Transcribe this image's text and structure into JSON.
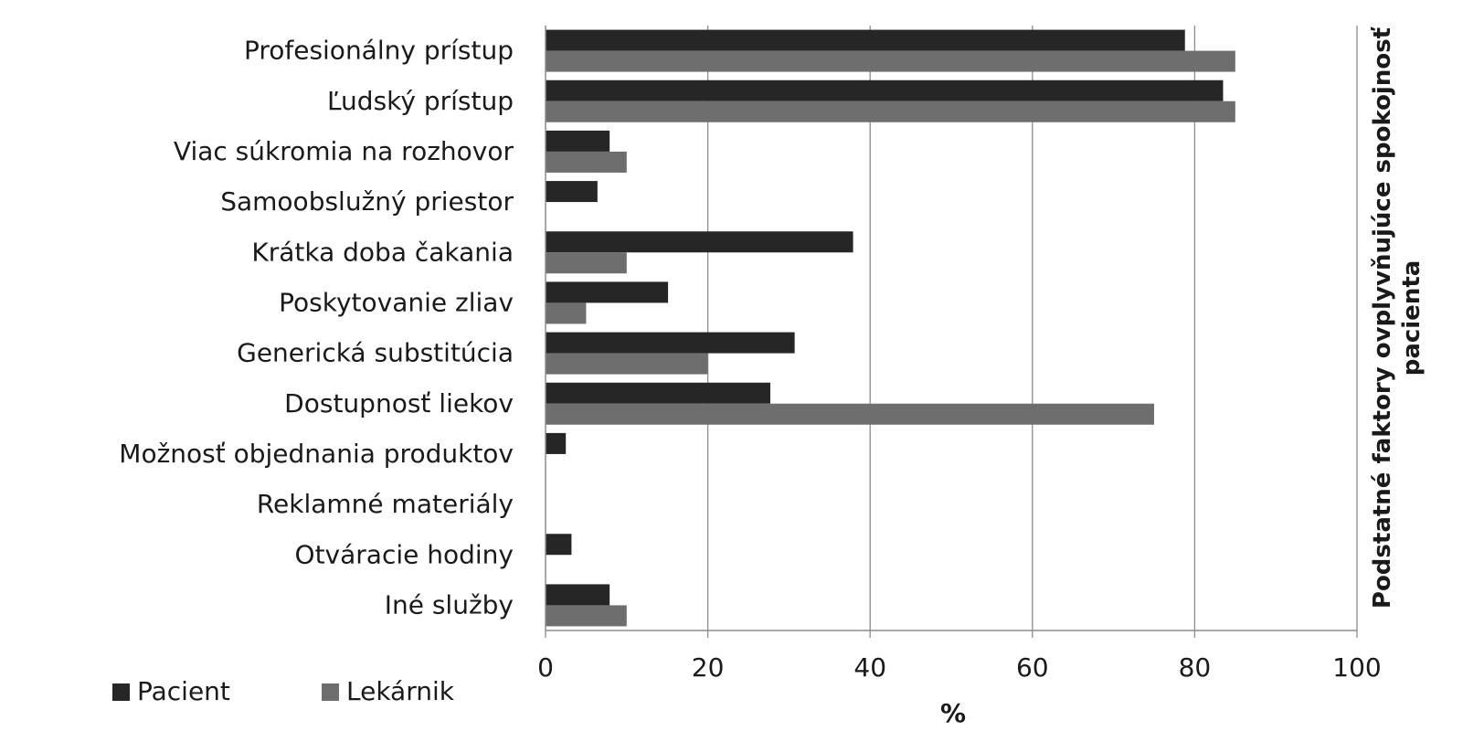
{
  "chart_data": {
    "type": "bar",
    "orientation": "horizontal",
    "categories": [
      "Profesionálny prístup",
      "Ľudský prístup",
      "Viac súkromia na rozhovor",
      "Samoobslužný priestor",
      "Krátka doba čakania",
      "Poskytovanie zliav",
      "Generická substitúcia",
      "Dostupnosť liekov",
      "Možnosť objednania produktov",
      "Reklamné materiály",
      "Otváracie hodiny",
      "Iné služby"
    ],
    "series": [
      {
        "name": "Pacient",
        "color": "#262626",
        "values": [
          78.8,
          83.5,
          7.9,
          6.4,
          37.9,
          15.1,
          30.7,
          27.7,
          2.5,
          0,
          3.2,
          7.9
        ]
      },
      {
        "name": "Lekárnik",
        "color": "#6e6e6e",
        "values": [
          85,
          85,
          10,
          0,
          10,
          5,
          20,
          75,
          0,
          0,
          0,
          10
        ]
      }
    ],
    "xlabel": "%",
    "ylabel": "Podstatné faktory ovplyvňujúce spokojnosť pacienta",
    "ylabel_lines": [
      "Podstatné faktory ovplyvňujúce spokojnosť",
      "pacienta"
    ],
    "xlim": [
      0,
      100
    ],
    "xticks": [
      0,
      20,
      40,
      60,
      80,
      100
    ],
    "grid": "vertical",
    "legend_position": "bottom-left"
  }
}
